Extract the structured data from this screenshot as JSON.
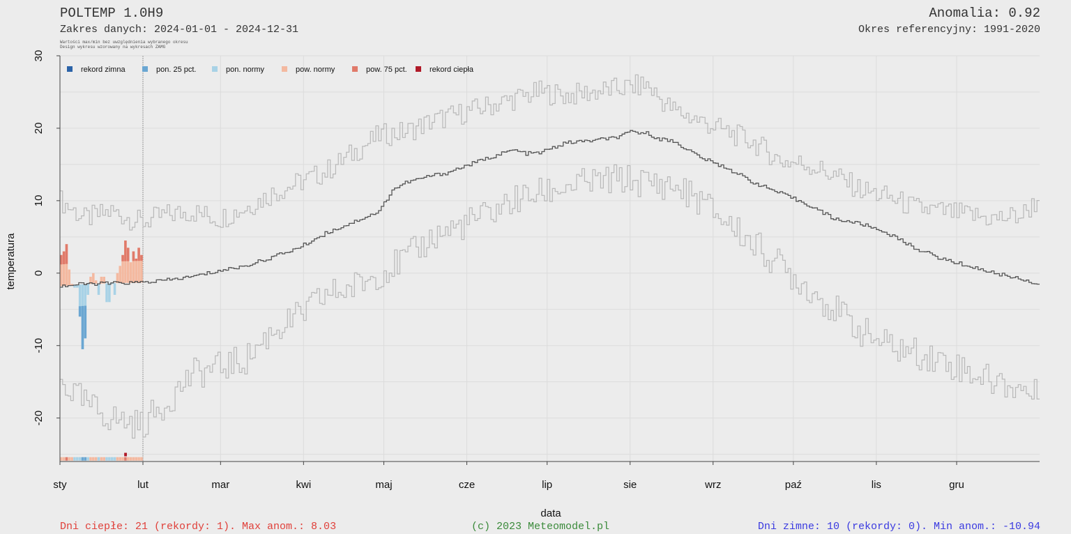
{
  "header": {
    "title": "POLTEMP 1.0H9",
    "range": "Zakres danych: 2024-01-01 - 2024-12-31",
    "note1": "Wartości max/min bez uwzględnienia wybranego okresu",
    "note2": "Design wykresu wzorowany na wykresach ZAMG",
    "anomaly": "Anomalia: 0.92",
    "reference": "Okres referencyjny: 1991-2020"
  },
  "footer": {
    "warm": "Dni ciepłe:  21 (rekordy: 1). Max anom.: 8.03",
    "copyright": "(c) 2023 Meteomodel.pl",
    "cold": "Dni zimne:  10 (rekordy: 0). Min anom.: -10.94"
  },
  "colors": {
    "background": "#ececec",
    "grid": "#dcdcdc",
    "record_cold": "#2b63a8",
    "below_p25": "#6aa6d2",
    "below_norm": "#a8d2e6",
    "above_norm": "#f4b9a0",
    "above_p75": "#e07a6a",
    "record_warm": "#b01a28",
    "normal_line": "#555555",
    "extreme_line": "#b8b8b8"
  },
  "chart_data": {
    "type": "line",
    "xlabel": "data",
    "ylabel": "temperatura",
    "ylim": [
      -26,
      30
    ],
    "yticks": [
      -20,
      -10,
      0,
      10,
      20,
      30
    ],
    "month_labels": [
      "sty",
      "lut",
      "mar",
      "kwi",
      "maj",
      "cze",
      "lip",
      "sie",
      "wrz",
      "paź",
      "lis",
      "gru"
    ],
    "month_start_days": [
      1,
      32,
      61,
      92,
      122,
      153,
      183,
      214,
      245,
      275,
      306,
      336
    ],
    "days": 366,
    "legend": [
      {
        "label": "rekord zimna",
        "color_key": "record_cold"
      },
      {
        "label": "pon. 25 pct.",
        "color_key": "below_p25"
      },
      {
        "label": "pon. normy",
        "color_key": "below_norm"
      },
      {
        "label": "pow. normy",
        "color_key": "above_norm"
      },
      {
        "label": "pow. 75 pct.",
        "color_key": "above_p75"
      },
      {
        "label": "rekord ciepła",
        "color_key": "record_warm"
      }
    ],
    "normal_curve": {
      "days": [
        1,
        10,
        20,
        31,
        40,
        50,
        60,
        70,
        80,
        90,
        100,
        110,
        120,
        125,
        130,
        140,
        145,
        150,
        160,
        170,
        175,
        180,
        190,
        200,
        210,
        214,
        220,
        225,
        230,
        240,
        245,
        250,
        260,
        270,
        280,
        290,
        300,
        305,
        310,
        320,
        330,
        340,
        350,
        360,
        366
      ],
      "values": [
        -1.8,
        -1.5,
        -1.4,
        -1.3,
        -1.0,
        -0.5,
        0.3,
        1.0,
        2.2,
        3.5,
        5.5,
        7.0,
        8.5,
        11.5,
        12.5,
        13.5,
        13.8,
        14.5,
        15.8,
        17.0,
        16.5,
        16.6,
        18.0,
        18.3,
        18.8,
        19.5,
        19.3,
        18.5,
        18.2,
        16.0,
        15.2,
        14.5,
        12.5,
        11.0,
        9.5,
        7.5,
        6.8,
        6.2,
        5.5,
        3.5,
        2.0,
        1.0,
        0.0,
        -0.8,
        -1.5
      ]
    },
    "max_curve": {
      "days": [
        1,
        10,
        20,
        31,
        40,
        50,
        60,
        70,
        80,
        90,
        100,
        110,
        120,
        130,
        140,
        150,
        160,
        170,
        180,
        190,
        200,
        210,
        220,
        225,
        230,
        240,
        250,
        260,
        270,
        280,
        290,
        300,
        310,
        320,
        330,
        340,
        350,
        360,
        366
      ],
      "values": [
        10.0,
        7.5,
        8.5,
        7.0,
        8.0,
        8.5,
        7.5,
        9.0,
        11.0,
        12.5,
        14.0,
        16.5,
        19.0,
        19.5,
        21.0,
        22.0,
        23.0,
        24.0,
        25.0,
        24.5,
        25.0,
        25.5,
        26.0,
        24.0,
        22.5,
        21.0,
        19.5,
        18.0,
        15.5,
        15.0,
        13.5,
        11.5,
        10.5,
        9.0,
        8.5,
        8.0,
        7.5,
        8.0,
        10.0
      ]
    },
    "min_curve": {
      "days": [
        1,
        10,
        20,
        31,
        40,
        50,
        60,
        70,
        80,
        90,
        100,
        110,
        120,
        130,
        140,
        150,
        160,
        170,
        180,
        190,
        200,
        210,
        220,
        230,
        240,
        250,
        260,
        270,
        280,
        290,
        300,
        310,
        320,
        330,
        340,
        350,
        360,
        366
      ],
      "values": [
        -15.0,
        -18.0,
        -20.0,
        -21.0,
        -18.0,
        -14.0,
        -13.0,
        -12.0,
        -8.0,
        -6.0,
        -3.0,
        -2.0,
        0.0,
        2.0,
        5.0,
        6.5,
        8.0,
        10.0,
        11.0,
        12.0,
        12.5,
        13.0,
        12.5,
        12.0,
        10.0,
        7.0,
        4.0,
        1.0,
        -2.0,
        -5.0,
        -8.0,
        -10.0,
        -11.0,
        -12.0,
        -13.5,
        -15.0,
        -16.0,
        -17.0
      ]
    },
    "observed_jan": {
      "days": [
        1,
        2,
        3,
        4,
        5,
        6,
        7,
        8,
        9,
        10,
        11,
        12,
        13,
        14,
        15,
        16,
        17,
        18,
        19,
        20,
        21,
        22,
        23,
        24,
        25,
        26,
        27,
        28,
        29,
        30,
        31
      ],
      "values": [
        2.5,
        3.0,
        4.0,
        0.5,
        -1.5,
        -2.0,
        -2.0,
        -6.0,
        -10.5,
        -9.0,
        -3.0,
        -0.5,
        0.0,
        -1.0,
        -3.0,
        -0.5,
        -0.5,
        -4.0,
        -4.0,
        -1.5,
        -3.0,
        0.0,
        1.0,
        2.5,
        4.5,
        3.5,
        1.5,
        3.0,
        2.0,
        3.5,
        2.5
      ]
    }
  }
}
